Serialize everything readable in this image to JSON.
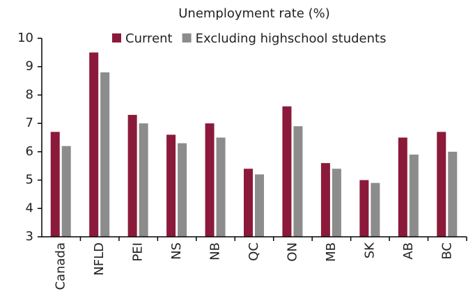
{
  "chart_data": {
    "type": "bar",
    "title": "Unemployment rate (%)",
    "categories": [
      "Canada",
      "NFLD",
      "PEI",
      "NS",
      "NB",
      "QC",
      "ON",
      "MB",
      "SK",
      "AB",
      "BC"
    ],
    "series": [
      {
        "name": "Current",
        "color": "#8b1a3a",
        "values": [
          6.7,
          9.5,
          7.3,
          6.6,
          7.0,
          5.4,
          7.6,
          5.6,
          5.0,
          6.5,
          6.7
        ]
      },
      {
        "name": "Excluding highschool students",
        "color": "#8c8c8c",
        "values": [
          6.2,
          8.8,
          7.0,
          6.3,
          6.5,
          5.2,
          6.9,
          5.4,
          4.9,
          5.9,
          6.0
        ]
      }
    ],
    "ylim": [
      3,
      10
    ],
    "yticks": [
      3,
      4,
      5,
      6,
      7,
      8,
      9,
      10
    ],
    "grid": false
  }
}
